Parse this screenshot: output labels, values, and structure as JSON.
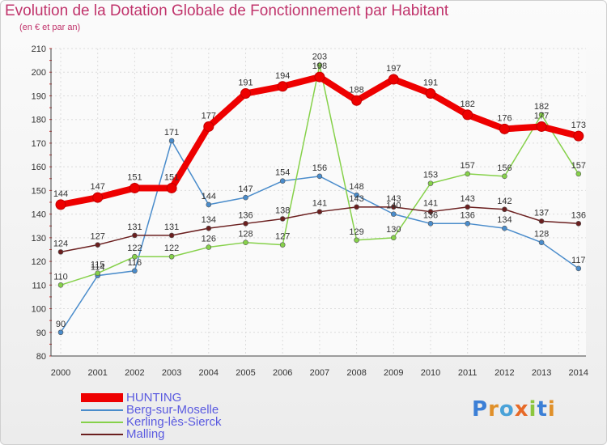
{
  "chart_data": {
    "type": "line",
    "title": "Evolution de la Dotation Globale de Fonctionnement par Habitant",
    "subtitle": "(en € et par an)",
    "xlabel": "",
    "ylabel": "",
    "x": [
      "2000",
      "2001",
      "2002",
      "2003",
      "2004",
      "2005",
      "2006",
      "2007",
      "2008",
      "2009",
      "2010",
      "2011",
      "2012",
      "2013",
      "2014"
    ],
    "ylim": [
      80,
      210
    ],
    "yticks": [
      80,
      90,
      100,
      110,
      120,
      130,
      140,
      150,
      160,
      170,
      180,
      190,
      200,
      210
    ],
    "grid": true,
    "legend_position": "bottom-left",
    "series": [
      {
        "name": "HUNTING",
        "color": "#ee0000",
        "values": [
          144,
          147,
          151,
          151,
          177,
          191,
          194,
          198,
          188,
          197,
          191,
          182,
          176,
          177,
          173
        ]
      },
      {
        "name": "Berg-sur-Moselle",
        "color": "#4a8ccb",
        "values": [
          90,
          114,
          116,
          171,
          144,
          147,
          154,
          156,
          148,
          140,
          136,
          136,
          134,
          128,
          117
        ]
      },
      {
        "name": "Kerling-lès-Sierck",
        "color": "#86d14a",
        "values": [
          110,
          115,
          122,
          122,
          126,
          128,
          127,
          203,
          129,
          130,
          153,
          157,
          156,
          182,
          157
        ]
      },
      {
        "name": "Malling",
        "color": "#6b1f1f",
        "values": [
          124,
          127,
          131,
          131,
          134,
          136,
          138,
          141,
          143,
          143,
          141,
          143,
          142,
          137,
          136
        ]
      }
    ]
  },
  "logo": {
    "letters": [
      "P",
      "r",
      "o",
      "x",
      "i",
      "t",
      "i"
    ]
  }
}
